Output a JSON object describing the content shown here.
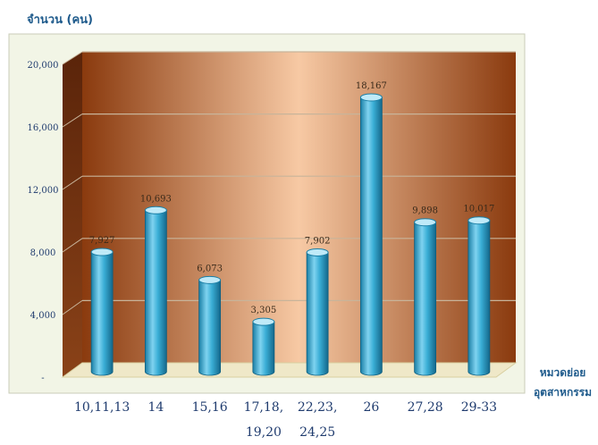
{
  "chart_data": {
    "type": "bar",
    "ylabel": "จำนวน (คน)",
    "xlabel": [
      "หมวดย่อย",
      "อุตสาหกรรม"
    ],
    "categories": [
      [
        "10,11,13"
      ],
      [
        "14"
      ],
      [
        "15,16"
      ],
      [
        "17,18,",
        "19,20"
      ],
      [
        "22,23,",
        "24,25"
      ],
      [
        "26"
      ],
      [
        "27,28"
      ],
      [
        "29-33"
      ]
    ],
    "values": [
      7927,
      10693,
      6073,
      3305,
      7902,
      18167,
      9898,
      10017
    ],
    "value_labels": [
      "7,927",
      "10,693",
      "6,073",
      "3,305",
      "7,902",
      "18,167",
      "9,898",
      "10,017"
    ],
    "ylim": [
      0,
      20000
    ],
    "yticks": [
      0,
      4000,
      8000,
      12000,
      16000,
      20000
    ],
    "ytick_labels": [
      "-",
      "4,000",
      "8,000",
      "12,000",
      "16,000",
      "20,000"
    ],
    "grid": true,
    "colors": {
      "bar": "#3aaed6",
      "bar_dark": "#1a7fa6",
      "background_light": "#f7c9a4",
      "background_dark": "#8a3a0e",
      "frame": "#f2f5e6",
      "axis_text": "#1f3b6e"
    }
  }
}
